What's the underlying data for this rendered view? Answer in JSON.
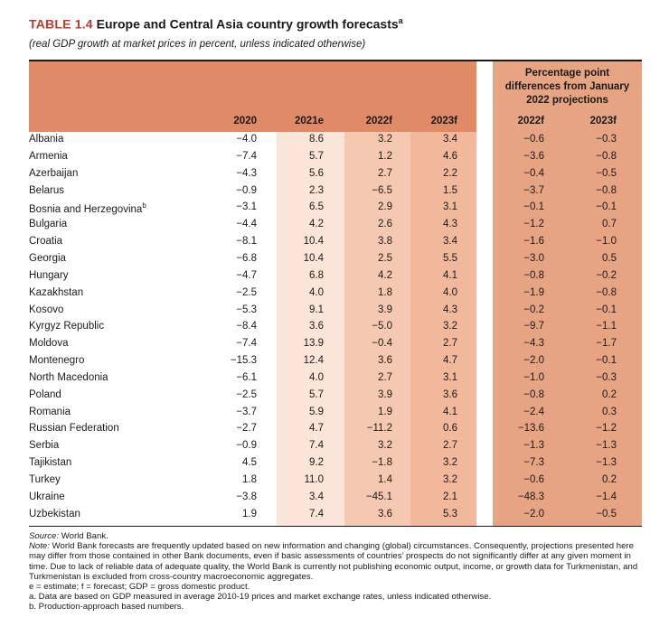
{
  "title": {
    "label": "TABLE 1.4",
    "text": "Europe and Central Asia country growth forecasts",
    "sup": "a"
  },
  "subtitle": "(real GDP growth at market prices in percent, unless indicated otherwise)",
  "diff_header": [
    "Percentage point",
    "differences from January",
    "2022 projections"
  ],
  "columns": [
    "2020",
    "2021e",
    "2022f",
    "2023f",
    "2022f",
    "2023f"
  ],
  "rows": [
    {
      "name": "Albania",
      "sup": "",
      "v": [
        "−4.0",
        "8.6",
        "3.2",
        "3.4",
        "−0.6",
        "−0.3"
      ]
    },
    {
      "name": "Armenia",
      "sup": "",
      "v": [
        "−7.4",
        "5.7",
        "1.2",
        "4.6",
        "−3.6",
        "−0.8"
      ]
    },
    {
      "name": "Azerbaijan",
      "sup": "",
      "v": [
        "−4.3",
        "5.6",
        "2.7",
        "2.2",
        "−0.4",
        "−0.5"
      ]
    },
    {
      "name": "Belarus",
      "sup": "",
      "v": [
        "−0.9",
        "2.3",
        "−6.5",
        "1.5",
        "−3.7",
        "−0.8"
      ]
    },
    {
      "name": "Bosnia and Herzegovina",
      "sup": "b",
      "v": [
        "−3.1",
        "6.5",
        "2.9",
        "3.1",
        "−0.1",
        "−0.1"
      ]
    },
    {
      "name": "Bulgaria",
      "sup": "",
      "v": [
        "−4.4",
        "4.2",
        "2.6",
        "4.3",
        "−1.2",
        "0.7"
      ]
    },
    {
      "name": "Croatia",
      "sup": "",
      "v": [
        "−8.1",
        "10.4",
        "3.8",
        "3.4",
        "−1.6",
        "−1.0"
      ]
    },
    {
      "name": "Georgia",
      "sup": "",
      "v": [
        "−6.8",
        "10.4",
        "2.5",
        "5.5",
        "−3.0",
        "0.5"
      ]
    },
    {
      "name": "Hungary",
      "sup": "",
      "v": [
        "−4.7",
        "6.8",
        "4.2",
        "4.1",
        "−0.8",
        "−0.2"
      ]
    },
    {
      "name": "Kazakhstan",
      "sup": "",
      "v": [
        "−2.5",
        "4.0",
        "1.8",
        "4.0",
        "−1.9",
        "−0.8"
      ]
    },
    {
      "name": "Kosovo",
      "sup": "",
      "v": [
        "−5.3",
        "9.1",
        "3.9",
        "4.3",
        "−0.2",
        "−0.1"
      ]
    },
    {
      "name": "Kyrgyz Republic",
      "sup": "",
      "v": [
        "−8.4",
        "3.6",
        "−5.0",
        "3.2",
        "−9.7",
        "−1.1"
      ]
    },
    {
      "name": "Moldova",
      "sup": "",
      "v": [
        "−7.4",
        "13.9",
        "−0.4",
        "2.7",
        "−4.3",
        "−1.7"
      ]
    },
    {
      "name": "Montenegro",
      "sup": "",
      "v": [
        "−15.3",
        "12.4",
        "3.6",
        "4.7",
        "−2.0",
        "−0.1"
      ]
    },
    {
      "name": "North Macedonia",
      "sup": "",
      "v": [
        "−6.1",
        "4.0",
        "2.7",
        "3.1",
        "−1.0",
        "−0.3"
      ]
    },
    {
      "name": "Poland",
      "sup": "",
      "v": [
        "−2.5",
        "5.7",
        "3.9",
        "3.6",
        "−0.8",
        "0.2"
      ]
    },
    {
      "name": "Romania",
      "sup": "",
      "v": [
        "−3.7",
        "5.9",
        "1.9",
        "4.1",
        "−2.4",
        "0.3"
      ]
    },
    {
      "name": "Russian Federation",
      "sup": "",
      "v": [
        "−2.7",
        "4.7",
        "−11.2",
        "0.6",
        "−13.6",
        "−1.2"
      ]
    },
    {
      "name": "Serbia",
      "sup": "",
      "v": [
        "−0.9",
        "7.4",
        "3.2",
        "2.7",
        "−1.3",
        "−1.3"
      ]
    },
    {
      "name": "Tajikistan",
      "sup": "",
      "v": [
        "4.5",
        "9.2",
        "−1.8",
        "3.2",
        "−7.3",
        "−1.3"
      ]
    },
    {
      "name": "Turkey",
      "sup": "",
      "v": [
        "1.8",
        "11.0",
        "1.4",
        "3.2",
        "−0.6",
        "0.2"
      ]
    },
    {
      "name": "Ukraine",
      "sup": "",
      "v": [
        "−3.8",
        "3.4",
        "−45.1",
        "2.1",
        "−48.3",
        "−1.4"
      ]
    },
    {
      "name": "Uzbekistan",
      "sup": "",
      "v": [
        "1.9",
        "7.4",
        "3.6",
        "5.3",
        "−2.0",
        "−0.5"
      ]
    }
  ],
  "notes": {
    "source_label": "Source:",
    "source": " World Bank.",
    "note_label": "Note:",
    "note": " World Bank forecasts are frequently updated based on new information and changing (global) circumstances. Consequently, projections presented here may differ from those contained in other Bank documents, even if basic assessments of countries’ prospects do not significantly differ at any given moment in time. Due to lack of reliable data of adequate quality, the World Bank is currently not publishing economic output, income, or growth data for Turkmenistan, and Turkmenistan is excluded from cross-country macroeconomic aggregates.",
    "legend": "e = estimate; f = forecast; GDP = gross domestic product.",
    "a": "a. Data are based on GDP measured in average 2010-19 prices and market exchange rates, unless indicated otherwise.",
    "b": "b. Production-approach based numbers."
  }
}
